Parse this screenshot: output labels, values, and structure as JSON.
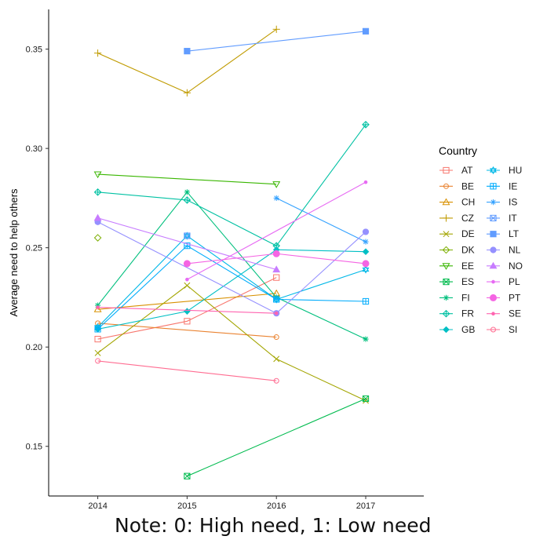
{
  "chart_data": {
    "type": "line",
    "title": "",
    "xlabel": "",
    "ylabel": "Average need to help others",
    "x": [
      2014,
      2015,
      2016,
      2017
    ],
    "x_tick_labels": [
      "2014",
      "2015",
      "2016",
      "2017"
    ],
    "y_ticks": [
      0.15,
      0.2,
      0.25,
      0.3,
      0.35
    ],
    "y_tick_labels": [
      "0.15",
      "0.20",
      "0.25",
      "0.30",
      "0.35"
    ],
    "xlim": [
      2013.45,
      2017.65
    ],
    "ylim": [
      0.125,
      0.37
    ],
    "grid": false,
    "legend": {
      "title": "Country",
      "position": "right",
      "columns": 2
    },
    "note": "Note: 0: High need, 1: Low need",
    "series": [
      {
        "name": "AT",
        "color": "#F8766D",
        "marker": "square-open",
        "values": [
          0.204,
          0.213,
          0.235,
          null
        ]
      },
      {
        "name": "BE",
        "color": "#EA8331",
        "marker": "circle-open",
        "values": [
          0.212,
          null,
          0.205,
          null
        ]
      },
      {
        "name": "CH",
        "color": "#D89000",
        "marker": "triangle-open",
        "values": [
          0.219,
          null,
          0.227,
          null
        ]
      },
      {
        "name": "CZ",
        "color": "#C09B00",
        "marker": "plus",
        "values": [
          0.348,
          0.328,
          0.36,
          null
        ]
      },
      {
        "name": "DE",
        "color": "#A3A500",
        "marker": "cross",
        "values": [
          0.197,
          0.231,
          0.194,
          0.173
        ]
      },
      {
        "name": "DK",
        "color": "#7CAE00",
        "marker": "diamond-open",
        "values": [
          0.255,
          null,
          null,
          null
        ]
      },
      {
        "name": "EE",
        "color": "#39B600",
        "marker": "triangle-down-open",
        "values": [
          0.287,
          null,
          0.282,
          null
        ]
      },
      {
        "name": "ES",
        "color": "#00BB4E",
        "marker": "square-cross",
        "values": [
          null,
          0.135,
          null,
          0.174
        ]
      },
      {
        "name": "FI",
        "color": "#00BF7D",
        "marker": "asterisk",
        "values": [
          0.221,
          0.278,
          0.225,
          0.204
        ]
      },
      {
        "name": "FR",
        "color": "#00C1A3",
        "marker": "diamond-plus",
        "values": [
          0.278,
          0.274,
          0.251,
          0.312
        ]
      },
      {
        "name": "GB",
        "color": "#00BFC4",
        "marker": "diamond",
        "values": [
          0.209,
          0.218,
          0.249,
          0.248
        ]
      },
      {
        "name": "HU",
        "color": "#00B8E7",
        "marker": "star-open",
        "values": [
          0.21,
          0.256,
          0.224,
          0.239
        ]
      },
      {
        "name": "IE",
        "color": "#00ACFC",
        "marker": "square-plus",
        "values": [
          0.209,
          0.251,
          0.224,
          0.223
        ]
      },
      {
        "name": "IS",
        "color": "#35A2FF",
        "marker": "asterisk",
        "values": [
          null,
          null,
          0.275,
          0.253
        ]
      },
      {
        "name": "IT",
        "color": "#619CFF",
        "marker": "square-x",
        "values": [
          null,
          0.256,
          null,
          null
        ]
      },
      {
        "name": "LT",
        "color": "#619CFF",
        "marker": "square",
        "values": [
          null,
          0.349,
          null,
          0.359
        ]
      },
      {
        "name": "NL",
        "color": "#9590FF",
        "marker": "circle",
        "values": [
          0.263,
          null,
          0.217,
          0.258
        ]
      },
      {
        "name": "NO",
        "color": "#C77CFF",
        "marker": "triangle",
        "values": [
          0.265,
          null,
          0.239,
          null
        ]
      },
      {
        "name": "PL",
        "color": "#E76BF3",
        "marker": "small-dot",
        "values": [
          null,
          0.234,
          null,
          0.283
        ]
      },
      {
        "name": "PT",
        "color": "#F564E3",
        "marker": "circle-large",
        "values": [
          null,
          0.242,
          0.247,
          0.242
        ]
      },
      {
        "name": "SE",
        "color": "#FF64B0",
        "marker": "small-dot",
        "values": [
          0.22,
          null,
          0.217,
          null
        ]
      },
      {
        "name": "SI",
        "color": "#FF6C91",
        "marker": "circle-open",
        "values": [
          0.193,
          null,
          0.183,
          null
        ]
      }
    ]
  }
}
